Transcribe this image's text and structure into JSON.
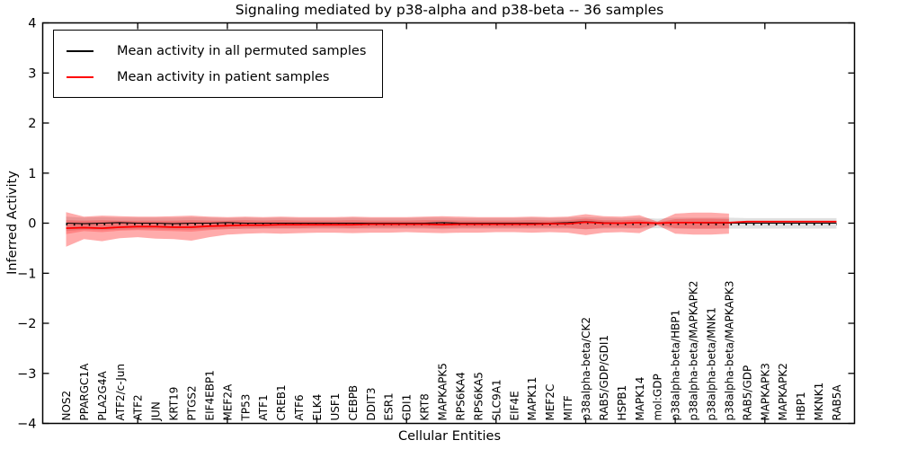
{
  "chart_data": {
    "type": "line",
    "title": "Signaling mediated by p38-alpha and p38-beta -- 36 samples",
    "xlabel": "Cellular Entities",
    "ylabel": "Inferred Activity",
    "ylim": [
      -4,
      4
    ],
    "grid": false,
    "legend_position": "upper-left",
    "yticks": [
      4,
      3,
      2,
      1,
      0,
      -1,
      -2,
      -3,
      -4
    ],
    "ytick_labels": [
      "4",
      "3",
      "2",
      "1",
      "0",
      "−1",
      "−2",
      "−3",
      "−4"
    ],
    "xtick_major_indices": [
      4,
      9,
      14,
      19,
      24,
      29,
      34,
      39
    ],
    "categories": [
      "NOS2",
      "PPARGC1A",
      "PLA2G4A",
      "ATF2/c-Jun",
      "ATF2",
      "JUN",
      "KRT19",
      "PTGS2",
      "EIF4EBP1",
      "MEF2A",
      "TP53",
      "ATF1",
      "CREB1",
      "ATF6",
      "ELK4",
      "USF1",
      "CEBPB",
      "DDIT3",
      "ESR1",
      "GDI1",
      "KRT8",
      "MAPKAPK5",
      "RPS6KA4",
      "RPS6KA5",
      "SLC9A1",
      "EIF4E",
      "MAPK11",
      "MEF2C",
      "MITF",
      "p38alpha-beta/CK2",
      "RAB5/GDP/GDI1",
      "HSPB1",
      "MAPK14",
      "mol:GDP",
      "p38alpha-beta/HBP1",
      "p38alpha-beta/MAPKAPK2",
      "p38alpha-beta/MNK1",
      "p38alpha-beta/MAPKAPK3",
      "RAB5/GDP",
      "MAPKAPK3",
      "MAPKAPK2",
      "HBP1",
      "MKNK1",
      "RAB5A"
    ],
    "series": [
      {
        "name": "Mean activity in all permuted samples",
        "color": "#000000",
        "values": [
          0.0,
          -0.01,
          0.0,
          0.01,
          0.0,
          0.0,
          -0.01,
          0.0,
          0.0,
          0.01,
          0.0,
          0.0,
          0.0,
          0.0,
          0.0,
          0.0,
          0.0,
          0.0,
          0.0,
          0.0,
          0.0,
          0.01,
          0.0,
          0.0,
          0.0,
          0.0,
          0.0,
          0.0,
          0.01,
          0.03,
          0.01,
          0.0,
          0.01,
          0.0,
          0.01,
          0.01,
          0.0,
          0.0,
          0.0,
          0.0,
          0.0,
          0.0,
          0.0,
          0.0
        ]
      },
      {
        "name": "Mean activity in patient samples",
        "color": "#ff0000",
        "values": [
          -0.1,
          -0.09,
          -0.1,
          -0.08,
          -0.07,
          -0.07,
          -0.08,
          -0.08,
          -0.06,
          -0.05,
          -0.04,
          -0.04,
          -0.03,
          -0.03,
          -0.03,
          -0.03,
          -0.03,
          -0.02,
          -0.02,
          -0.02,
          -0.02,
          -0.03,
          -0.02,
          -0.02,
          -0.02,
          -0.02,
          -0.02,
          -0.01,
          -0.01,
          0.02,
          0.0,
          0.0,
          0.01,
          0.0,
          0.01,
          0.01,
          0.01,
          0.01,
          0.03,
          0.03,
          0.03,
          0.03,
          0.03,
          0.03
        ]
      }
    ],
    "bands": [
      {
        "name": "permuted-samples-range",
        "color": "rgba(0,0,0,0.12)",
        "upper": [
          0.13,
          0.11,
          0.12,
          0.11,
          0.11,
          0.11,
          0.11,
          0.12,
          0.11,
          0.1,
          0.11,
          0.1,
          0.11,
          0.1,
          0.1,
          0.1,
          0.11,
          0.1,
          0.1,
          0.1,
          0.11,
          0.11,
          0.1,
          0.1,
          0.1,
          0.1,
          0.11,
          0.1,
          0.11,
          0.12,
          0.11,
          0.1,
          0.11,
          0.09,
          0.11,
          0.11,
          0.11,
          0.11,
          0.1,
          0.1,
          0.1,
          0.1,
          0.1,
          0.1
        ],
        "lower": [
          -0.16,
          -0.13,
          -0.14,
          -0.13,
          -0.12,
          -0.12,
          -0.13,
          -0.13,
          -0.12,
          -0.11,
          -0.12,
          -0.11,
          -0.11,
          -0.11,
          -0.11,
          -0.11,
          -0.11,
          -0.11,
          -0.11,
          -0.11,
          -0.11,
          -0.12,
          -0.11,
          -0.11,
          -0.11,
          -0.11,
          -0.11,
          -0.11,
          -0.11,
          -0.12,
          -0.11,
          -0.11,
          -0.11,
          -0.1,
          -0.11,
          -0.11,
          -0.11,
          -0.11,
          -0.11,
          -0.11,
          -0.11,
          -0.11,
          -0.11,
          -0.11
        ]
      },
      {
        "name": "patient-samples-outer-range",
        "color": "rgba(255,0,0,0.33)",
        "upper": [
          0.22,
          0.13,
          0.15,
          0.14,
          0.13,
          0.13,
          0.14,
          0.15,
          0.13,
          0.12,
          0.13,
          0.12,
          0.13,
          0.12,
          0.12,
          0.12,
          0.13,
          0.12,
          0.12,
          0.12,
          0.13,
          0.14,
          0.13,
          0.12,
          0.12,
          0.12,
          0.13,
          0.12,
          0.13,
          0.18,
          0.14,
          0.13,
          0.16,
          0.03,
          0.19,
          0.21,
          0.21,
          0.19,
          null,
          null,
          null,
          null,
          null,
          null
        ],
        "lower": [
          -0.47,
          -0.32,
          -0.36,
          -0.3,
          -0.28,
          -0.31,
          -0.32,
          -0.35,
          -0.28,
          -0.23,
          -0.21,
          -0.2,
          -0.21,
          -0.2,
          -0.19,
          -0.19,
          -0.2,
          -0.19,
          -0.19,
          -0.18,
          -0.19,
          -0.2,
          -0.19,
          -0.19,
          -0.18,
          -0.18,
          -0.19,
          -0.18,
          -0.19,
          -0.24,
          -0.19,
          -0.18,
          -0.2,
          -0.04,
          -0.21,
          -0.23,
          -0.23,
          -0.21,
          null,
          null,
          null,
          null,
          null,
          null
        ]
      },
      {
        "name": "patient-samples-inner-range",
        "color": "rgba(255,0,0,0.22)",
        "upper": [
          0.06,
          0.05,
          0.06,
          0.05,
          0.05,
          0.05,
          0.05,
          0.06,
          0.05,
          0.05,
          0.06,
          0.05,
          0.06,
          0.05,
          0.05,
          0.05,
          0.06,
          0.05,
          0.05,
          0.05,
          0.06,
          0.06,
          0.05,
          0.05,
          0.05,
          0.05,
          0.06,
          0.05,
          0.06,
          0.09,
          0.06,
          0.06,
          0.07,
          0.01,
          0.08,
          0.09,
          0.09,
          0.08,
          null,
          null,
          null,
          null,
          null,
          null
        ],
        "lower": [
          -0.22,
          -0.16,
          -0.18,
          -0.15,
          -0.14,
          -0.15,
          -0.16,
          -0.17,
          -0.14,
          -0.12,
          -0.1,
          -0.1,
          -0.1,
          -0.1,
          -0.09,
          -0.09,
          -0.1,
          -0.09,
          -0.09,
          -0.09,
          -0.09,
          -0.1,
          -0.09,
          -0.09,
          -0.09,
          -0.09,
          -0.09,
          -0.09,
          -0.09,
          -0.12,
          -0.09,
          -0.09,
          -0.1,
          -0.02,
          -0.1,
          -0.11,
          -0.11,
          -0.1,
          null,
          null,
          null,
          null,
          null,
          null
        ]
      }
    ]
  }
}
